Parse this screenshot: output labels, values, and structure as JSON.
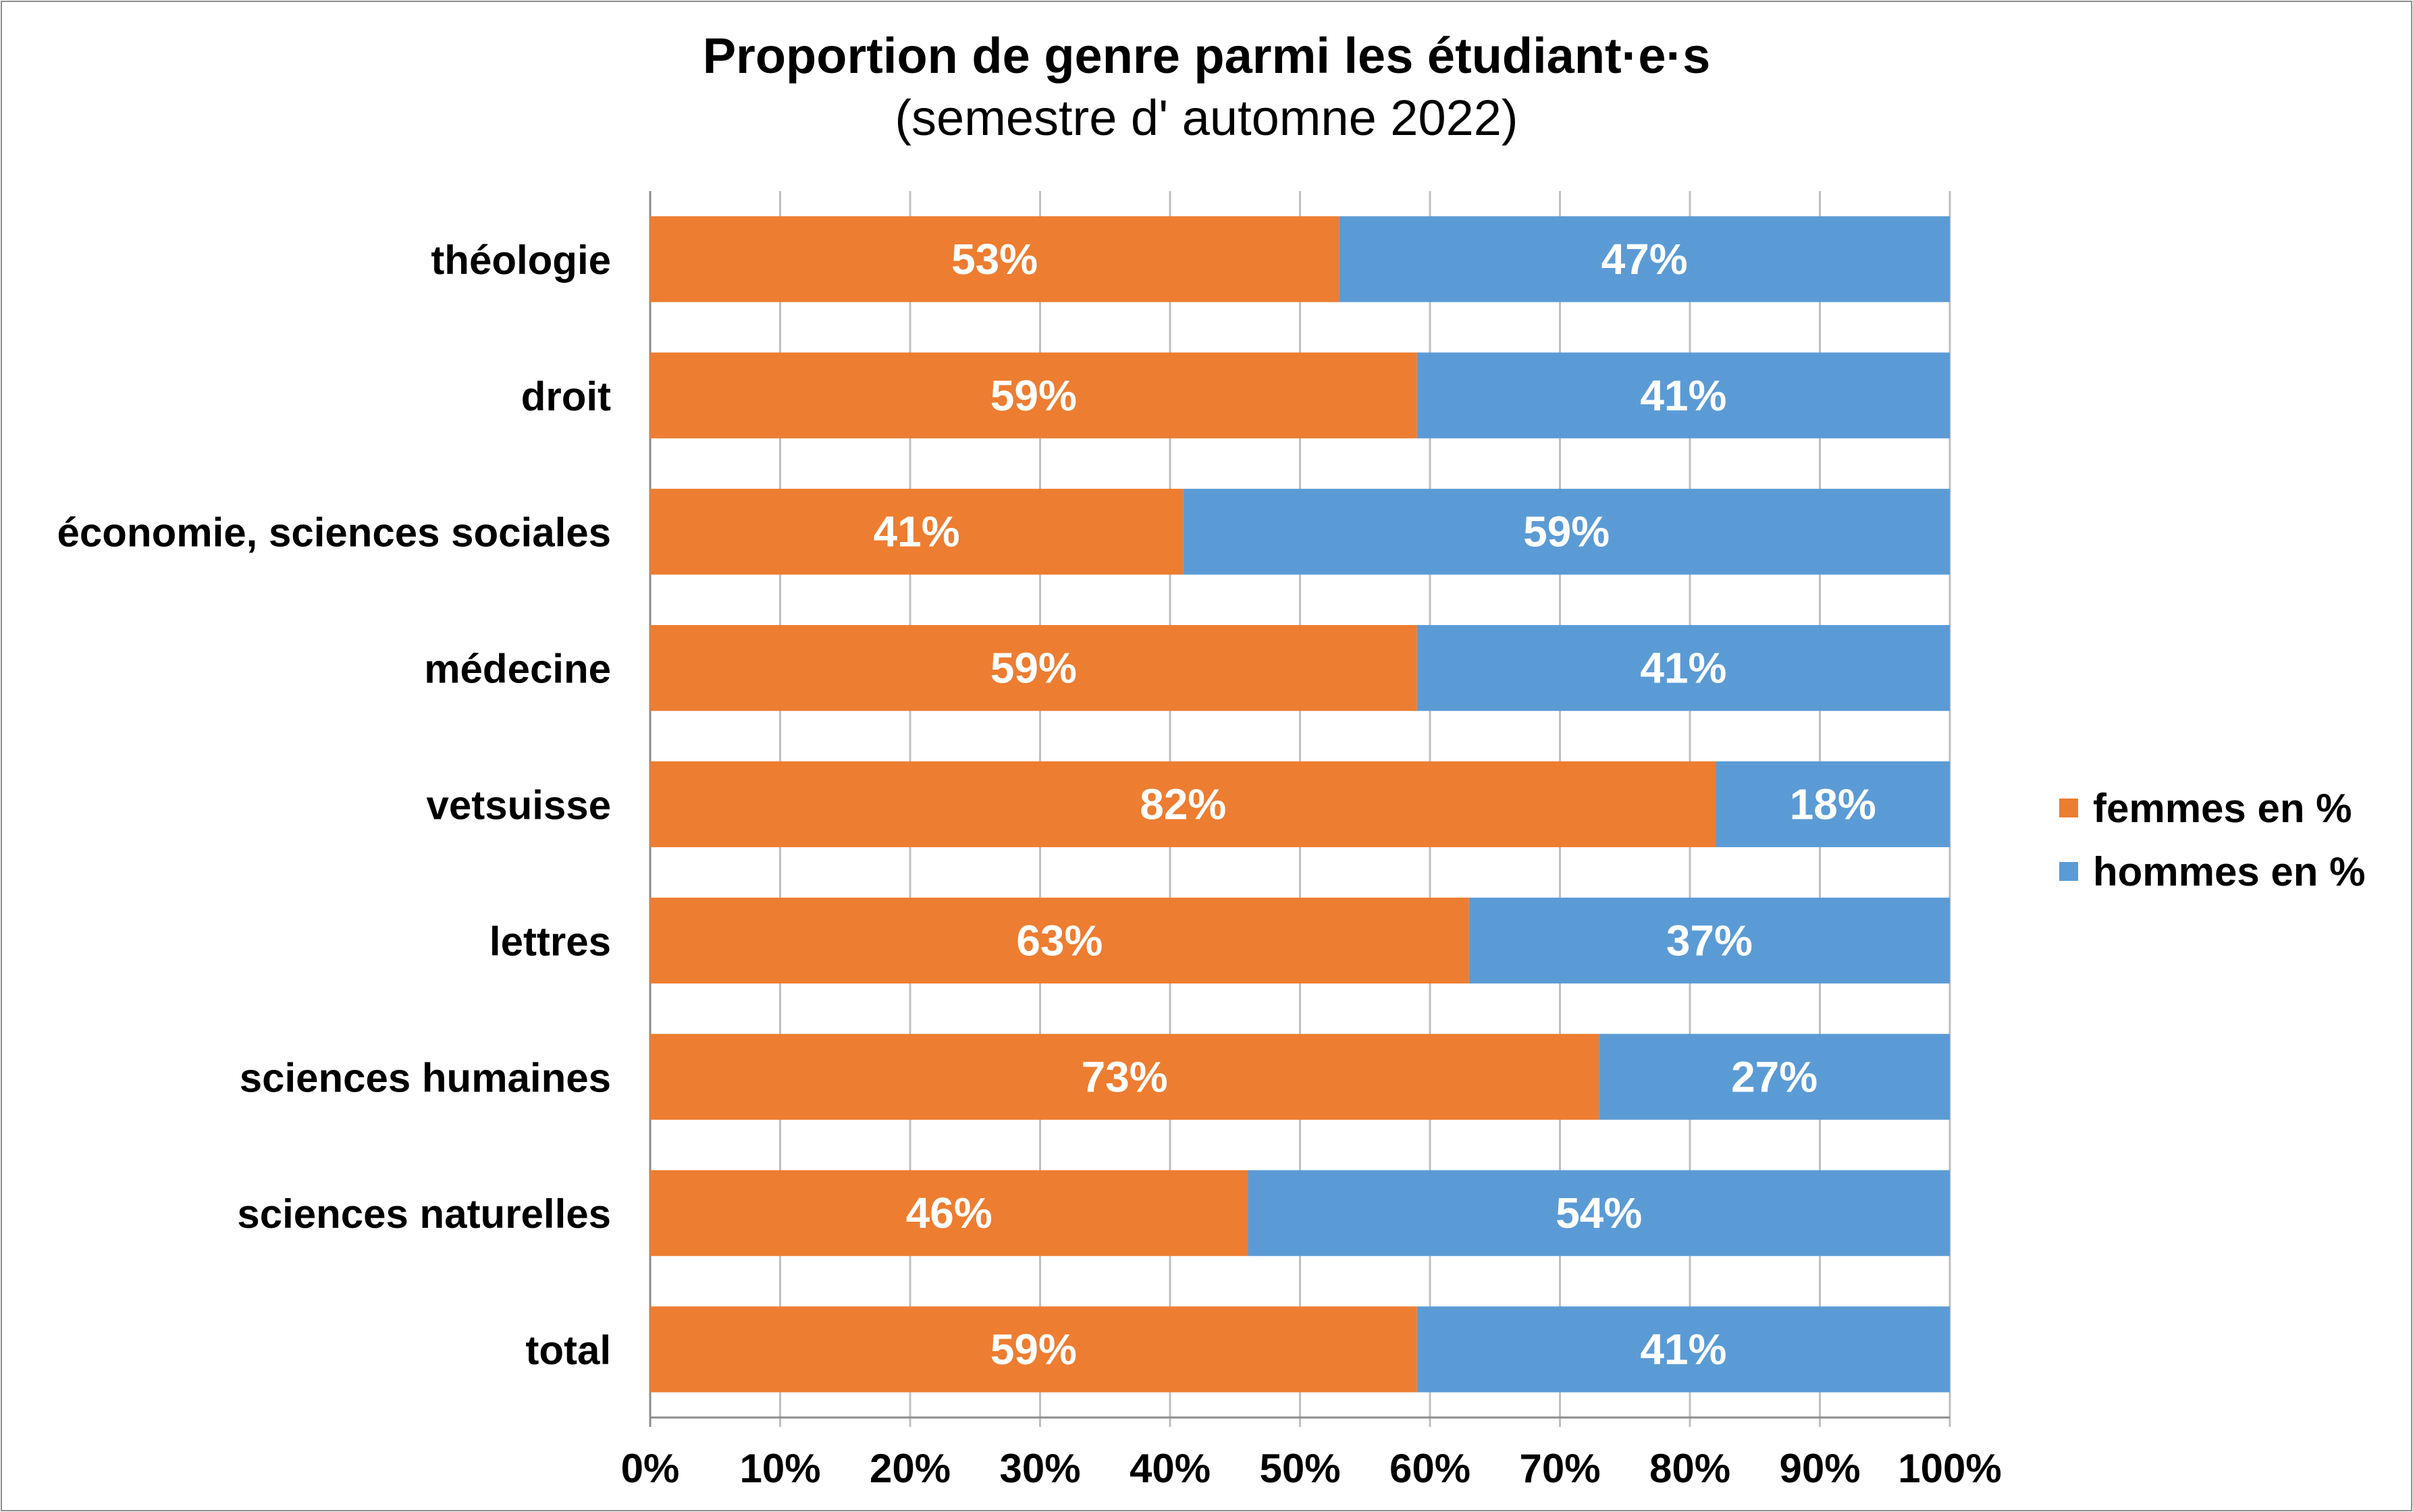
{
  "chart_data": {
    "type": "bar",
    "orientation": "horizontal",
    "stacked": true,
    "title": "Proportion de genre parmi les étudiant·e·s",
    "subtitle": "(semestre d' automne 2022)",
    "categories": [
      "théologie",
      "droit",
      "économie, sciences sociales",
      "médecine",
      "vetsuisse",
      "lettres",
      "sciences humaines",
      "sciences naturelles",
      "total"
    ],
    "series": [
      {
        "name": "femmes en %",
        "color": "#ED7D31",
        "values": [
          53,
          59,
          41,
          59,
          82,
          63,
          73,
          46,
          59
        ]
      },
      {
        "name": "hommes en %",
        "color": "#5B9BD5",
        "values": [
          47,
          41,
          59,
          41,
          18,
          37,
          27,
          54,
          41
        ]
      }
    ],
    "value_labels": [
      [
        "53%",
        "59%",
        "41%",
        "59%",
        "82%",
        "63%",
        "73%",
        "46%",
        "59%"
      ],
      [
        "47%",
        "41%",
        "59%",
        "41%",
        "18%",
        "37%",
        "27%",
        "54%",
        "41%"
      ]
    ],
    "xlim": [
      0,
      100
    ],
    "xticks": [
      "0%",
      "10%",
      "20%",
      "30%",
      "40%",
      "50%",
      "60%",
      "70%",
      "80%",
      "90%",
      "100%"
    ],
    "grid": true,
    "legend_position": "right"
  }
}
